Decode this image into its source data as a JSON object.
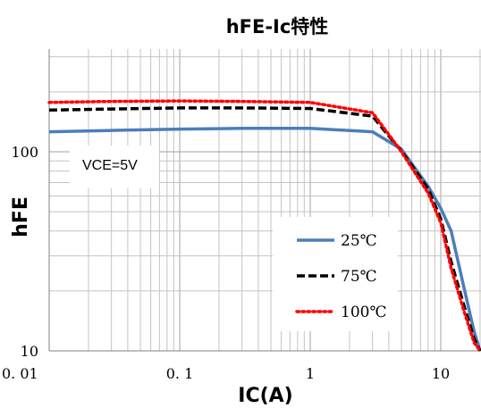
{
  "chart_data": {
    "type": "line",
    "title": "hFE-Ic特性",
    "xlabel": "IC(A)",
    "ylabel": "hFE",
    "x_scale": "log",
    "y_scale": "log",
    "xlim": [
      0.01,
      20
    ],
    "ylim": [
      10,
      300
    ],
    "x_ticks": [
      {
        "value": 0.01,
        "label": "0. 01"
      },
      {
        "value": 0.1,
        "label": "0. 1"
      },
      {
        "value": 1,
        "label": "1"
      },
      {
        "value": 10,
        "label": "10"
      }
    ],
    "y_ticks": [
      {
        "value": 10,
        "label": "10"
      },
      {
        "value": 100,
        "label": "100"
      }
    ],
    "grid": true,
    "annotation": "VCE=5V",
    "legend_position": "lower-right",
    "series": [
      {
        "name": "25℃",
        "color": "#4a7ebb",
        "style": "solid",
        "points": [
          [
            0.01,
            126
          ],
          [
            0.03,
            128
          ],
          [
            0.1,
            130
          ],
          [
            0.3,
            131
          ],
          [
            1,
            131
          ],
          [
            3,
            126
          ],
          [
            5,
            103
          ],
          [
            8,
            67
          ],
          [
            10,
            52
          ],
          [
            12,
            40
          ],
          [
            15,
            21
          ],
          [
            18,
            12.5
          ],
          [
            20,
            10
          ]
        ]
      },
      {
        "name": "75℃",
        "color": "#000000",
        "style": "dashed",
        "points": [
          [
            0.01,
            162
          ],
          [
            0.03,
            164
          ],
          [
            0.1,
            166
          ],
          [
            0.3,
            166
          ],
          [
            1,
            165
          ],
          [
            3,
            151
          ],
          [
            4,
            120
          ],
          [
            5,
            101
          ],
          [
            8,
            65
          ],
          [
            10,
            46
          ],
          [
            12,
            28
          ],
          [
            15,
            17
          ],
          [
            18,
            11.5
          ],
          [
            20,
            10
          ]
        ]
      },
      {
        "name": "100℃",
        "color": "#ff0000",
        "style": "dotted",
        "points": [
          [
            0.01,
            177
          ],
          [
            0.03,
            179
          ],
          [
            0.1,
            180
          ],
          [
            0.3,
            179
          ],
          [
            1,
            177
          ],
          [
            3,
            157
          ],
          [
            4,
            122
          ],
          [
            5,
            100
          ],
          [
            8,
            62
          ],
          [
            10,
            44
          ],
          [
            12,
            26
          ],
          [
            15,
            16
          ],
          [
            18,
            11
          ],
          [
            20,
            10
          ]
        ]
      }
    ]
  }
}
